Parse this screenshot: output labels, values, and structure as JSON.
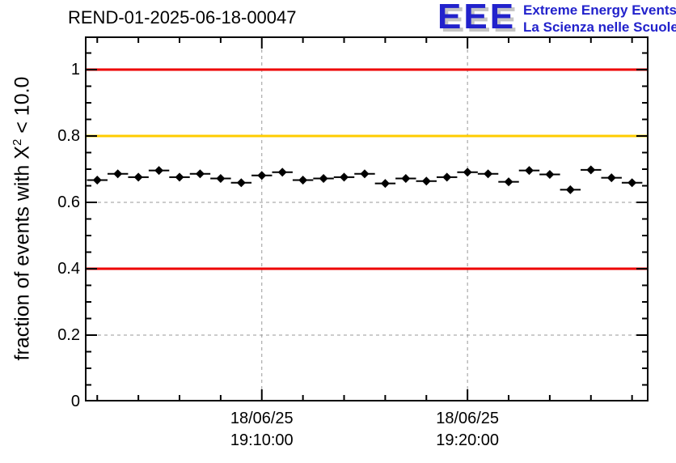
{
  "logo": {
    "acronym": "EEE",
    "line1": "Extreme Energy Events",
    "line2": "La Scienza nelle Scuole",
    "color": "#2222cc"
  },
  "chart_data": {
    "type": "scatter",
    "title": "REND-01-2025-06-18-00047",
    "ylabel_parts": {
      "pre": "fraction of events with X",
      "sup": "2",
      "post": " < 10.0"
    },
    "xlabel": "",
    "ylim": [
      0,
      1.1
    ],
    "xlim_minutes_after_19h": [
      1.4,
      28.8
    ],
    "grid": true,
    "grid_color": "#999999",
    "y_major_ticks": [
      {
        "value": 0,
        "label": "0"
      },
      {
        "value": 0.2,
        "label": "0.2"
      },
      {
        "value": 0.4,
        "label": "0.4"
      },
      {
        "value": 0.6,
        "label": "0.6"
      },
      {
        "value": 0.8,
        "label": "0.8"
      },
      {
        "value": 1,
        "label": "1"
      }
    ],
    "y_minor_step": 0.05,
    "x_major_ticks": [
      {
        "minutes": 10,
        "label_date": "18/06/25",
        "label_time": "19:10:00"
      },
      {
        "minutes": 20,
        "label_date": "18/06/25",
        "label_time": "19:20:00"
      }
    ],
    "x_minor_step_minutes": 2,
    "reference_lines": [
      {
        "y": 1.0,
        "color": "#ee0000"
      },
      {
        "y": 0.8,
        "color": "#ffcc00"
      },
      {
        "y": 0.4,
        "color": "#ee0000"
      }
    ],
    "series": [
      {
        "name": "fraction of events with chi2 < 10 per minute",
        "marker": "diamond",
        "color": "#000000",
        "x_error_minutes": 0.5,
        "points": [
          {
            "time": "18/06/25 19:02:00",
            "minutes": 2,
            "value": 0.667
          },
          {
            "time": "18/06/25 19:03:00",
            "minutes": 3,
            "value": 0.686
          },
          {
            "time": "18/06/25 19:04:00",
            "minutes": 4,
            "value": 0.676
          },
          {
            "time": "18/06/25 19:05:00",
            "minutes": 5,
            "value": 0.696
          },
          {
            "time": "18/06/25 19:06:00",
            "minutes": 6,
            "value": 0.676
          },
          {
            "time": "18/06/25 19:07:00",
            "minutes": 7,
            "value": 0.686
          },
          {
            "time": "18/06/25 19:08:00",
            "minutes": 8,
            "value": 0.672
          },
          {
            "time": "18/06/25 19:09:00",
            "minutes": 9,
            "value": 0.659
          },
          {
            "time": "18/06/25 19:10:00",
            "minutes": 10,
            "value": 0.681
          },
          {
            "time": "18/06/25 19:11:00",
            "minutes": 11,
            "value": 0.691
          },
          {
            "time": "18/06/25 19:12:00",
            "minutes": 12,
            "value": 0.667
          },
          {
            "time": "18/06/25 19:13:00",
            "minutes": 13,
            "value": 0.672
          },
          {
            "time": "18/06/25 19:14:00",
            "minutes": 14,
            "value": 0.676
          },
          {
            "time": "18/06/25 19:15:00",
            "minutes": 15,
            "value": 0.686
          },
          {
            "time": "18/06/25 19:16:00",
            "minutes": 16,
            "value": 0.657
          },
          {
            "time": "18/06/25 19:17:00",
            "minutes": 17,
            "value": 0.672
          },
          {
            "time": "18/06/25 19:18:00",
            "minutes": 18,
            "value": 0.664
          },
          {
            "time": "18/06/25 19:19:00",
            "minutes": 19,
            "value": 0.676
          },
          {
            "time": "18/06/25 19:20:00",
            "minutes": 20,
            "value": 0.691
          },
          {
            "time": "18/06/25 19:21:00",
            "minutes": 21,
            "value": 0.686
          },
          {
            "time": "18/06/25 19:22:00",
            "minutes": 22,
            "value": 0.662
          },
          {
            "time": "18/06/25 19:23:00",
            "minutes": 23,
            "value": 0.696
          },
          {
            "time": "18/06/25 19:24:00",
            "minutes": 24,
            "value": 0.684
          },
          {
            "time": "18/06/25 19:25:00",
            "minutes": 25,
            "value": 0.638
          },
          {
            "time": "18/06/25 19:26:00",
            "minutes": 26,
            "value": 0.698
          },
          {
            "time": "18/06/25 19:27:00",
            "minutes": 27,
            "value": 0.674
          },
          {
            "time": "18/06/25 19:28:00",
            "minutes": 28,
            "value": 0.659
          }
        ]
      }
    ]
  }
}
